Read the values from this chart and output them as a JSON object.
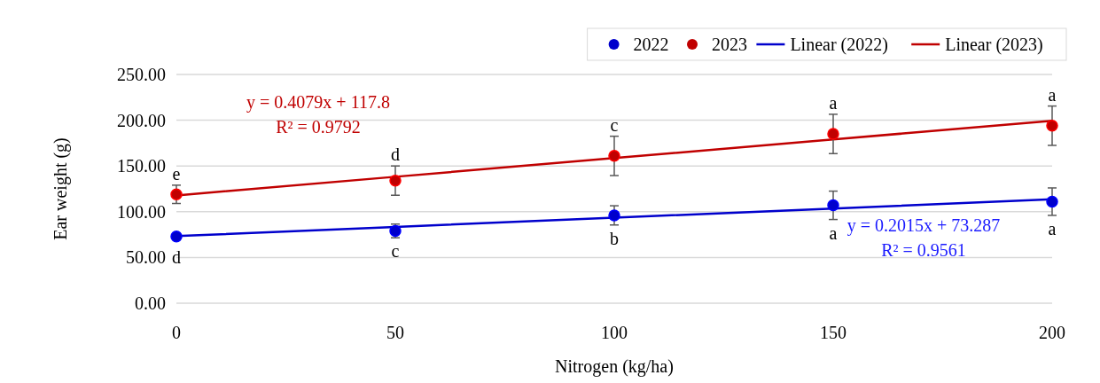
{
  "chart_data": {
    "type": "scatter",
    "xlabel": "Nitrogen (kg/ha)",
    "ylabel": "Ear weight  (g)",
    "x": [
      0,
      50,
      100,
      150,
      200
    ],
    "xlim": [
      0,
      200
    ],
    "xticks": [
      0,
      50,
      100,
      150,
      200
    ],
    "ylim": [
      0,
      250
    ],
    "yticks": [
      {
        "value": 0,
        "label": "0.00"
      },
      {
        "value": 50,
        "label": "50.00"
      },
      {
        "value": 100,
        "label": "100.00"
      },
      {
        "value": 150,
        "label": "150.00"
      },
      {
        "value": 200,
        "label": "200.00"
      },
      {
        "value": 250,
        "label": "250.00"
      }
    ],
    "grid": "y",
    "legend": "top right",
    "series": [
      {
        "name": "2022",
        "marker": "circle",
        "color": "#0000cc",
        "values": [
          73,
          79,
          96,
          107,
          111
        ],
        "errors": [
          null,
          7.5,
          10.5,
          15.5,
          15
        ]
      },
      {
        "name": "2023",
        "marker": "circle",
        "color": "#c00000",
        "values": [
          119,
          134,
          161,
          185,
          194
        ],
        "errors": [
          10,
          16,
          21.5,
          21.5,
          21.5
        ]
      },
      {
        "name": "Linear (2022)",
        "type": "line",
        "marker": "none",
        "color": "#0000cc",
        "values": [
          73.3,
          83.4,
          93.4,
          103.5,
          113.6
        ]
      },
      {
        "name": "Linear (2023)",
        "type": "line",
        "marker": "none",
        "color": "#c00000",
        "values": [
          117.8,
          138.2,
          158.6,
          179.0,
          199.4
        ]
      }
    ],
    "annotations": [
      {
        "text": "e",
        "x": 0,
        "y": 119
      },
      {
        "text": "d",
        "x": 50,
        "y": 134
      },
      {
        "text": "c",
        "x": 100,
        "y": 161
      },
      {
        "text": "a",
        "x": 150,
        "y": 185
      },
      {
        "text": "a",
        "x": 200,
        "y": 194
      },
      {
        "text": "d",
        "x": 0,
        "y": 73
      },
      {
        "text": "c",
        "x": 50,
        "y": 79
      },
      {
        "text": "b",
        "x": 100,
        "y": 96
      },
      {
        "text": "a",
        "x": 150,
        "y": 107
      },
      {
        "text": "a",
        "x": 200,
        "y": 111
      },
      "y = 0.2015x + 73.287",
      "R² = 0.9561",
      "y = 0.4079x + 117.8",
      "R² = 0.9792"
    ]
  }
}
